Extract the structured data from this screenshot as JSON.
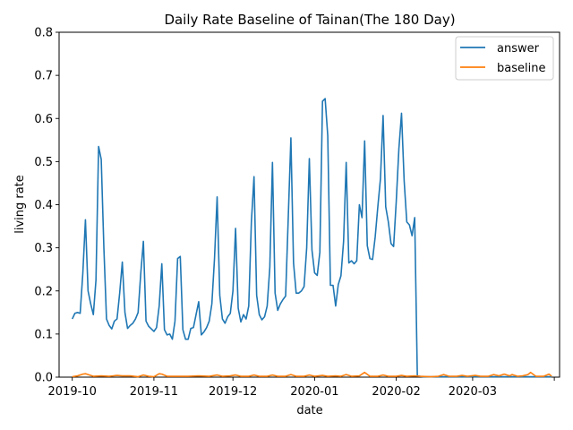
{
  "chart_data": {
    "type": "line",
    "title": "Daily Rate Baseline of Tainan(The 180 Day)",
    "xlabel": "date",
    "ylabel": "living rate",
    "xlim": [
      "2019-09-26",
      "2020-04-03"
    ],
    "ylim": [
      0,
      0.8
    ],
    "x_ticks": [
      "2019-10-01",
      "2019-11-01",
      "2019-12-01",
      "2020-01-01",
      "2020-02-01",
      "2020-03-01",
      "2020-04-01"
    ],
    "x_tick_labels": [
      "2019-10",
      "2019-11",
      "2019-12",
      "2020-01",
      "2020-02",
      "2020-03",
      ""
    ],
    "y_ticks": [
      0.0,
      0.1,
      0.2,
      0.3,
      0.4,
      0.5,
      0.6,
      0.7,
      0.8
    ],
    "y_tick_labels": [
      "0.0",
      "0.1",
      "0.2",
      "0.3",
      "0.4",
      "0.5",
      "0.6",
      "0.7",
      "0.8"
    ],
    "grid": false,
    "legend": "top-right",
    "series": [
      {
        "name": "answer",
        "color": "#1f77b4",
        "points": [
          [
            "2019-10-01",
            0.135
          ],
          [
            "2019-10-02",
            0.148
          ],
          [
            "2019-10-03",
            0.15
          ],
          [
            "2019-10-04",
            0.148
          ],
          [
            "2019-10-05",
            0.24
          ],
          [
            "2019-10-06",
            0.365
          ],
          [
            "2019-10-07",
            0.2
          ],
          [
            "2019-10-08",
            0.17
          ],
          [
            "2019-10-09",
            0.145
          ],
          [
            "2019-10-10",
            0.225
          ],
          [
            "2019-10-11",
            0.535
          ],
          [
            "2019-10-12",
            0.505
          ],
          [
            "2019-10-13",
            0.3
          ],
          [
            "2019-10-14",
            0.135
          ],
          [
            "2019-10-15",
            0.12
          ],
          [
            "2019-10-16",
            0.112
          ],
          [
            "2019-10-17",
            0.13
          ],
          [
            "2019-10-18",
            0.135
          ],
          [
            "2019-10-19",
            0.195
          ],
          [
            "2019-10-20",
            0.267
          ],
          [
            "2019-10-21",
            0.15
          ],
          [
            "2019-10-22",
            0.113
          ],
          [
            "2019-10-23",
            0.12
          ],
          [
            "2019-10-24",
            0.125
          ],
          [
            "2019-10-25",
            0.135
          ],
          [
            "2019-10-26",
            0.15
          ],
          [
            "2019-10-27",
            0.24
          ],
          [
            "2019-10-28",
            0.315
          ],
          [
            "2019-10-29",
            0.13
          ],
          [
            "2019-10-30",
            0.118
          ],
          [
            "2019-10-31",
            0.112
          ],
          [
            "2019-11-01",
            0.106
          ],
          [
            "2019-11-02",
            0.115
          ],
          [
            "2019-11-03",
            0.165
          ],
          [
            "2019-11-04",
            0.263
          ],
          [
            "2019-11-05",
            0.11
          ],
          [
            "2019-11-06",
            0.098
          ],
          [
            "2019-11-07",
            0.1
          ],
          [
            "2019-11-08",
            0.088
          ],
          [
            "2019-11-09",
            0.13
          ],
          [
            "2019-11-10",
            0.275
          ],
          [
            "2019-11-11",
            0.28
          ],
          [
            "2019-11-12",
            0.11
          ],
          [
            "2019-11-13",
            0.088
          ],
          [
            "2019-11-14",
            0.088
          ],
          [
            "2019-11-15",
            0.113
          ],
          [
            "2019-11-16",
            0.115
          ],
          [
            "2019-11-17",
            0.145
          ],
          [
            "2019-11-18",
            0.175
          ],
          [
            "2019-11-19",
            0.098
          ],
          [
            "2019-11-20",
            0.105
          ],
          [
            "2019-11-21",
            0.115
          ],
          [
            "2019-11-22",
            0.13
          ],
          [
            "2019-11-23",
            0.17
          ],
          [
            "2019-11-24",
            0.275
          ],
          [
            "2019-11-25",
            0.418
          ],
          [
            "2019-11-26",
            0.19
          ],
          [
            "2019-11-27",
            0.135
          ],
          [
            "2019-11-28",
            0.125
          ],
          [
            "2019-11-29",
            0.14
          ],
          [
            "2019-11-30",
            0.148
          ],
          [
            "2019-12-01",
            0.2
          ],
          [
            "2019-12-02",
            0.345
          ],
          [
            "2019-12-03",
            0.16
          ],
          [
            "2019-12-04",
            0.128
          ],
          [
            "2019-12-05",
            0.145
          ],
          [
            "2019-12-06",
            0.135
          ],
          [
            "2019-12-07",
            0.165
          ],
          [
            "2019-12-08",
            0.36
          ],
          [
            "2019-12-09",
            0.465
          ],
          [
            "2019-12-10",
            0.19
          ],
          [
            "2019-12-11",
            0.145
          ],
          [
            "2019-12-12",
            0.133
          ],
          [
            "2019-12-13",
            0.14
          ],
          [
            "2019-12-14",
            0.165
          ],
          [
            "2019-12-15",
            0.255
          ],
          [
            "2019-12-16",
            0.498
          ],
          [
            "2019-12-17",
            0.195
          ],
          [
            "2019-12-18",
            0.155
          ],
          [
            "2019-12-19",
            0.17
          ],
          [
            "2019-12-20",
            0.18
          ],
          [
            "2019-12-21",
            0.188
          ],
          [
            "2019-12-22",
            0.37
          ],
          [
            "2019-12-23",
            0.555
          ],
          [
            "2019-12-24",
            0.265
          ],
          [
            "2019-12-25",
            0.195
          ],
          [
            "2019-12-26",
            0.195
          ],
          [
            "2019-12-27",
            0.2
          ],
          [
            "2019-12-28",
            0.21
          ],
          [
            "2019-12-29",
            0.3
          ],
          [
            "2019-12-30",
            0.507
          ],
          [
            "2019-12-31",
            0.295
          ],
          [
            "2020-01-01",
            0.242
          ],
          [
            "2020-01-02",
            0.236
          ],
          [
            "2020-01-03",
            0.29
          ],
          [
            "2020-01-04",
            0.64
          ],
          [
            "2020-01-05",
            0.646
          ],
          [
            "2020-01-06",
            0.56
          ],
          [
            "2020-01-07",
            0.213
          ],
          [
            "2020-01-08",
            0.213
          ],
          [
            "2020-01-09",
            0.165
          ],
          [
            "2020-01-10",
            0.215
          ],
          [
            "2020-01-11",
            0.235
          ],
          [
            "2020-01-12",
            0.315
          ],
          [
            "2020-01-13",
            0.498
          ],
          [
            "2020-01-14",
            0.265
          ],
          [
            "2020-01-15",
            0.27
          ],
          [
            "2020-01-16",
            0.263
          ],
          [
            "2020-01-17",
            0.27
          ],
          [
            "2020-01-18",
            0.4
          ],
          [
            "2020-01-19",
            0.37
          ],
          [
            "2020-01-20",
            0.548
          ],
          [
            "2020-01-21",
            0.305
          ],
          [
            "2020-01-22",
            0.275
          ],
          [
            "2020-01-23",
            0.273
          ],
          [
            "2020-01-24",
            0.325
          ],
          [
            "2020-01-25",
            0.395
          ],
          [
            "2020-01-26",
            0.46
          ],
          [
            "2020-01-27",
            0.607
          ],
          [
            "2020-01-28",
            0.395
          ],
          [
            "2020-01-29",
            0.36
          ],
          [
            "2020-01-30",
            0.31
          ],
          [
            "2020-01-31",
            0.303
          ],
          [
            "2020-02-01",
            0.408
          ],
          [
            "2020-02-02",
            0.53
          ],
          [
            "2020-02-03",
            0.612
          ],
          [
            "2020-02-04",
            0.455
          ],
          [
            "2020-02-05",
            0.36
          ],
          [
            "2020-02-06",
            0.353
          ],
          [
            "2020-02-07",
            0.328
          ],
          [
            "2020-02-08",
            0.37
          ],
          [
            "2020-02-09",
            0.003
          ],
          [
            "2020-02-10",
            0.002
          ],
          [
            "2020-02-11",
            0.001
          ],
          [
            "2020-02-12",
            0.001
          ],
          [
            "2020-02-15",
            0.001
          ],
          [
            "2020-02-20",
            0.001
          ],
          [
            "2020-02-25",
            0.001
          ],
          [
            "2020-03-01",
            0.001
          ],
          [
            "2020-03-05",
            0.001
          ],
          [
            "2020-03-10",
            0.001
          ],
          [
            "2020-03-15",
            0.001
          ],
          [
            "2020-03-20",
            0.001
          ],
          [
            "2020-03-25",
            0.001
          ],
          [
            "2020-03-31",
            0.001
          ]
        ]
      },
      {
        "name": "baseline",
        "color": "#ff7f0e",
        "points": [
          [
            "2019-10-01",
            0.001
          ],
          [
            "2019-10-03",
            0.003
          ],
          [
            "2019-10-05",
            0.007
          ],
          [
            "2019-10-06",
            0.008
          ],
          [
            "2019-10-07",
            0.006
          ],
          [
            "2019-10-09",
            0.002
          ],
          [
            "2019-10-12",
            0.003
          ],
          [
            "2019-10-15",
            0.002
          ],
          [
            "2019-10-18",
            0.004
          ],
          [
            "2019-10-20",
            0.003
          ],
          [
            "2019-10-23",
            0.003
          ],
          [
            "2019-10-26",
            0.001
          ],
          [
            "2019-10-28",
            0.005
          ],
          [
            "2019-10-30",
            0.002
          ],
          [
            "2019-11-01",
            0.001
          ],
          [
            "2019-11-03",
            0.008
          ],
          [
            "2019-11-04",
            0.007
          ],
          [
            "2019-11-06",
            0.002
          ],
          [
            "2019-11-10",
            0.002
          ],
          [
            "2019-11-14",
            0.002
          ],
          [
            "2019-11-18",
            0.003
          ],
          [
            "2019-11-22",
            0.002
          ],
          [
            "2019-11-25",
            0.005
          ],
          [
            "2019-11-27",
            0.002
          ],
          [
            "2019-11-30",
            0.003
          ],
          [
            "2019-12-02",
            0.005
          ],
          [
            "2019-12-04",
            0.002
          ],
          [
            "2019-12-07",
            0.002
          ],
          [
            "2019-12-09",
            0.005
          ],
          [
            "2019-12-11",
            0.002
          ],
          [
            "2019-12-14",
            0.002
          ],
          [
            "2019-12-16",
            0.005
          ],
          [
            "2019-12-18",
            0.002
          ],
          [
            "2019-12-21",
            0.002
          ],
          [
            "2019-12-23",
            0.006
          ],
          [
            "2019-12-25",
            0.002
          ],
          [
            "2019-12-28",
            0.002
          ],
          [
            "2019-12-30",
            0.005
          ],
          [
            "2020-01-01",
            0.002
          ],
          [
            "2020-01-04",
            0.004
          ],
          [
            "2020-01-06",
            0.002
          ],
          [
            "2020-01-09",
            0.003
          ],
          [
            "2020-01-11",
            0.002
          ],
          [
            "2020-01-13",
            0.006
          ],
          [
            "2020-01-15",
            0.002
          ],
          [
            "2020-01-18",
            0.003
          ],
          [
            "2020-01-20",
            0.011
          ],
          [
            "2020-01-22",
            0.002
          ],
          [
            "2020-01-25",
            0.002
          ],
          [
            "2020-01-27",
            0.005
          ],
          [
            "2020-01-29",
            0.002
          ],
          [
            "2020-02-01",
            0.002
          ],
          [
            "2020-02-03",
            0.004
          ],
          [
            "2020-02-05",
            0.002
          ],
          [
            "2020-02-08",
            0.003
          ],
          [
            "2020-02-10",
            0.002
          ],
          [
            "2020-02-14",
            0.001
          ],
          [
            "2020-02-17",
            0.002
          ],
          [
            "2020-02-19",
            0.006
          ],
          [
            "2020-02-21",
            0.002
          ],
          [
            "2020-02-24",
            0.002
          ],
          [
            "2020-02-26",
            0.004
          ],
          [
            "2020-02-28",
            0.002
          ],
          [
            "2020-03-02",
            0.004
          ],
          [
            "2020-03-04",
            0.002
          ],
          [
            "2020-03-07",
            0.002
          ],
          [
            "2020-03-09",
            0.006
          ],
          [
            "2020-03-11",
            0.003
          ],
          [
            "2020-03-13",
            0.007
          ],
          [
            "2020-03-15",
            0.003
          ],
          [
            "2020-03-16",
            0.006
          ],
          [
            "2020-03-18",
            0.002
          ],
          [
            "2020-03-20",
            0.003
          ],
          [
            "2020-03-22",
            0.006
          ],
          [
            "2020-03-23",
            0.011
          ],
          [
            "2020-03-25",
            0.002
          ],
          [
            "2020-03-28",
            0.002
          ],
          [
            "2020-03-30",
            0.007
          ],
          [
            "2020-03-31",
            0.002
          ]
        ]
      }
    ]
  }
}
